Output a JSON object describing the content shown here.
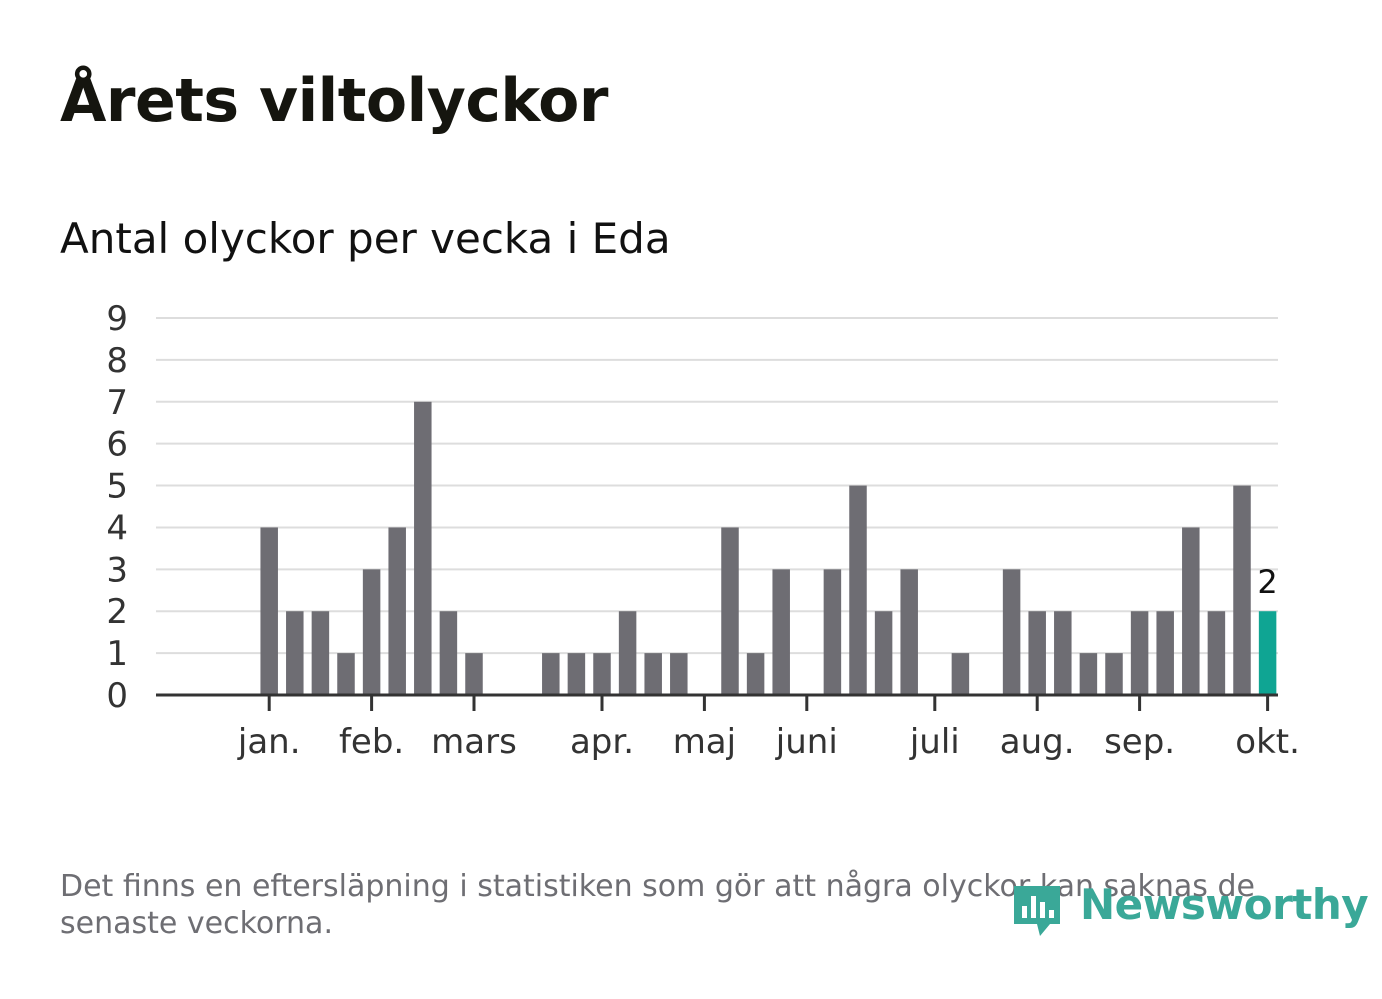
{
  "header": {
    "title": "Årets viltolyckor",
    "subtitle": "Antal olyckor per vecka i Eda"
  },
  "footer": {
    "note": "Det finns en eftersläpning i statistiken som gör att några olyckor kan saknas de senaste veckorna.",
    "logo_text": "Newsworthy"
  },
  "colors": {
    "bar": "#6e6d73",
    "highlight": "#0fa593",
    "grid": "#dddddd",
    "axis": "#333333",
    "text": "#333333",
    "logo": "#3aa898"
  },
  "chart_data": {
    "type": "bar",
    "title": "Antal olyckor per vecka i Eda",
    "xlabel": "",
    "ylabel": "",
    "ylim": [
      0,
      9
    ],
    "yticks": [
      "0",
      "1",
      "2",
      "3",
      "4",
      "5",
      "6",
      "7",
      "8",
      "9"
    ],
    "grid": true,
    "weeks": [
      1,
      2,
      3,
      4,
      5,
      6,
      7,
      8,
      9,
      10,
      11,
      12,
      13,
      14,
      15,
      16,
      17,
      18,
      19,
      20,
      21,
      22,
      23,
      24,
      25,
      26,
      27,
      28,
      29,
      30,
      31,
      32,
      33,
      34,
      35,
      36,
      37,
      38,
      39,
      40,
      41,
      42
    ],
    "values": [
      0,
      0,
      4,
      2,
      2,
      1,
      3,
      4,
      7,
      2,
      1,
      0,
      0,
      1,
      1,
      1,
      2,
      1,
      1,
      0,
      4,
      1,
      3,
      0,
      3,
      5,
      2,
      3,
      0,
      1,
      0,
      3,
      2,
      2,
      1,
      1,
      2,
      2,
      4,
      2,
      5,
      2
    ],
    "highlight_index": 41,
    "highlight_label": "2",
    "month_ticks": [
      {
        "label": "jan.",
        "week": 3.5
      },
      {
        "label": "feb.",
        "week": 7.5
      },
      {
        "label": "mars",
        "week": 11.5
      },
      {
        "label": "apr.",
        "week": 16.5
      },
      {
        "label": "maj",
        "week": 20.5
      },
      {
        "label": "juni",
        "week": 24.5
      },
      {
        "label": "juli",
        "week": 29.5
      },
      {
        "label": "aug.",
        "week": 33.5
      },
      {
        "label": "sep.",
        "week": 37.5
      },
      {
        "label": "okt.",
        "week": 42.5
      }
    ]
  }
}
